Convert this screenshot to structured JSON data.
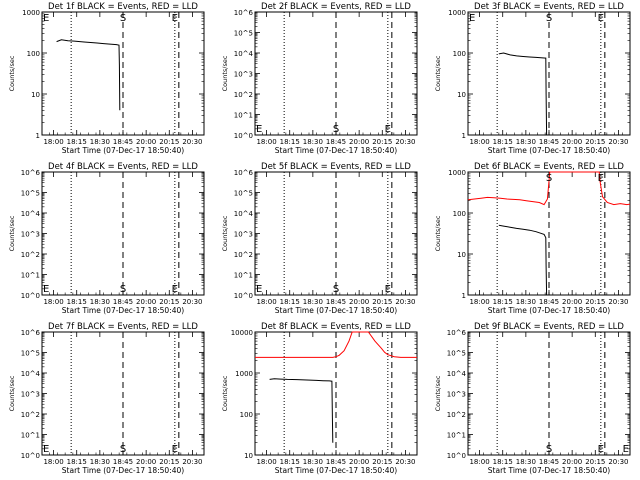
{
  "figure": {
    "title_template": "Det {det} BLACK = Events, RED = LLD",
    "ylabel": "Counts/sec",
    "xlabel": "Start Time (07-Dec-17 18:50:40)",
    "time_ticks": [
      "18:00",
      "18:15",
      "18:30",
      "18:45",
      "20:00",
      "20:15",
      "20:30"
    ],
    "colors": {
      "events": "#000000",
      "lld": "#ff0000",
      "axes": "#000000"
    }
  },
  "chart_data": [
    {
      "type": "line",
      "det": "1f",
      "title": "Det 1f BLACK = Events, RED = LLD",
      "xlabel": "Start Time (07-Dec-17 18:50:40)",
      "ylabel": "Counts/sec",
      "yscale": "log",
      "ylim": [
        1,
        1000
      ],
      "ytick_labels": [
        "1",
        "10",
        "100",
        "1000"
      ],
      "markers": [
        {
          "label": "E",
          "x": 0.0
        },
        {
          "label": "S",
          "x": 0.5
        },
        {
          "label": "E",
          "x": 0.82
        }
      ],
      "dotted_lines": [
        0.18,
        0.82
      ],
      "series": [
        {
          "color": "black",
          "x": [
            0.09,
            0.12,
            0.16,
            0.2,
            0.26,
            0.3,
            0.34,
            0.38,
            0.42,
            0.46,
            0.475,
            0.478,
            0.48
          ],
          "y": [
            190,
            210,
            200,
            195,
            185,
            180,
            175,
            170,
            165,
            160,
            155,
            50,
            4
          ]
        }
      ]
    },
    {
      "type": "line",
      "det": "2f",
      "title": "Det 2f BLACK = Events, RED = LLD",
      "xlabel": "Start Time (07-Dec-17 18:50:40)",
      "ylabel": "Counts/sec",
      "yscale": "log",
      "ylim": [
        1,
        1000000
      ],
      "ytick_labels": [
        "10^0",
        "10^1",
        "10^2",
        "10^3",
        "10^4",
        "10^5",
        "10^6"
      ],
      "markers": [
        {
          "label": "E",
          "x": 0.0
        },
        {
          "label": "S",
          "x": 0.5
        },
        {
          "label": "E",
          "x": 0.82
        }
      ],
      "dotted_lines": [
        0.18,
        0.82
      ],
      "series": []
    },
    {
      "type": "line",
      "det": "3f",
      "title": "Det 3f BLACK = Events, RED = LLD",
      "xlabel": "Start Time (07-Dec-17 18:50:40)",
      "ylabel": "Counts/sec",
      "yscale": "log",
      "ylim": [
        1,
        1000
      ],
      "ytick_labels": [
        "1",
        "10",
        "100",
        "1000"
      ],
      "markers": [
        {
          "label": "E",
          "x": 0.0
        },
        {
          "label": "S",
          "x": 0.5
        },
        {
          "label": "E",
          "x": 0.82
        }
      ],
      "dotted_lines": [
        0.18,
        0.82
      ],
      "series": [
        {
          "color": "black",
          "x": [
            0.19,
            0.22,
            0.26,
            0.3,
            0.34,
            0.38,
            0.42,
            0.46,
            0.48,
            0.482,
            0.485
          ],
          "y": [
            95,
            100,
            90,
            85,
            82,
            80,
            78,
            76,
            75,
            10,
            1
          ]
        }
      ]
    },
    {
      "type": "line",
      "det": "4f",
      "title": "Det 4f BLACK = Events, RED = LLD",
      "xlabel": "Start Time (07-Dec-17 18:50:40)",
      "ylabel": "Counts/sec",
      "yscale": "log",
      "ylim": [
        1,
        1000000
      ],
      "ytick_labels": [
        "10^0",
        "10^1",
        "10^2",
        "10^3",
        "10^4",
        "10^5",
        "10^6"
      ],
      "markers": [
        {
          "label": "E",
          "x": 0.0
        },
        {
          "label": "S",
          "x": 0.5
        },
        {
          "label": "E",
          "x": 0.82
        }
      ],
      "dotted_lines": [
        0.18,
        0.82
      ],
      "series": []
    },
    {
      "type": "line",
      "det": "5f",
      "title": "Det 5f BLACK = Events, RED = LLD",
      "xlabel": "Start Time (07-Dec-17 18:50:40)",
      "ylabel": "Counts/sec",
      "yscale": "log",
      "ylim": [
        1,
        1000000
      ],
      "ytick_labels": [
        "10^0",
        "10^1",
        "10^2",
        "10^3",
        "10^4",
        "10^5",
        "10^6"
      ],
      "markers": [
        {
          "label": "E",
          "x": 0.0
        },
        {
          "label": "S",
          "x": 0.5
        },
        {
          "label": "E",
          "x": 0.82
        }
      ],
      "dotted_lines": [
        0.18,
        0.82
      ],
      "series": []
    },
    {
      "type": "line",
      "det": "6f",
      "title": "Det 6f BLACK = Events, RED = LLD",
      "xlabel": "Start Time (07-Dec-17 18:50:40)",
      "ylabel": "Counts/sec",
      "yscale": "log",
      "ylim": [
        1,
        1000
      ],
      "ytick_labels": [
        "1",
        "10",
        "100",
        "1000"
      ],
      "markers": [
        {
          "label": "S",
          "x": 0.5
        },
        {
          "label": "E",
          "x": 0.82
        }
      ],
      "dotted_lines": [
        0.18,
        0.82
      ],
      "series": [
        {
          "color": "red",
          "x": [
            0.0,
            0.04,
            0.08,
            0.12,
            0.16,
            0.2,
            0.24,
            0.28,
            0.32,
            0.36,
            0.4,
            0.44,
            0.47,
            0.49,
            0.5,
            0.505,
            0.51,
            0.52,
            0.56,
            0.6,
            0.64,
            0.68,
            0.72,
            0.76,
            0.8,
            0.81,
            0.815,
            0.83,
            0.86,
            0.9,
            0.94,
            0.98,
            1.0
          ],
          "y": [
            210,
            220,
            230,
            240,
            235,
            230,
            220,
            215,
            210,
            200,
            190,
            180,
            160,
            220,
            600,
            1000,
            1000,
            1000,
            1000,
            1000,
            1000,
            1000,
            1000,
            1000,
            1000,
            1000,
            600,
            250,
            180,
            160,
            170,
            160,
            165
          ]
        },
        {
          "color": "black",
          "x": [
            0.19,
            0.22,
            0.26,
            0.3,
            0.34,
            0.38,
            0.42,
            0.45,
            0.47,
            0.48,
            0.482,
            0.485
          ],
          "y": [
            50,
            48,
            45,
            42,
            40,
            38,
            35,
            32,
            30,
            25,
            5,
            1
          ]
        }
      ]
    },
    {
      "type": "line",
      "det": "7f",
      "title": "Det 7f BLACK = Events, RED = LLD",
      "xlabel": "Start Time (07-Dec-17 18:50:40)",
      "ylabel": "Counts/sec",
      "yscale": "log",
      "ylim": [
        1,
        1000000
      ],
      "ytick_labels": [
        "10^0",
        "10^1",
        "10^2",
        "10^3",
        "10^4",
        "10^5",
        "10^6"
      ],
      "markers": [
        {
          "label": "E",
          "x": 0.0
        },
        {
          "label": "S",
          "x": 0.5
        },
        {
          "label": "E",
          "x": 0.82
        }
      ],
      "dotted_lines": [
        0.18,
        0.82
      ],
      "series": []
    },
    {
      "type": "line",
      "det": "8f",
      "title": "Det 8f BLACK = Events, RED = LLD",
      "xlabel": "Start Time (07-Dec-17 18:50:40)",
      "ylabel": "Counts/sec",
      "yscale": "log",
      "ylim": [
        10,
        10000
      ],
      "ytick_labels": [
        "10",
        "100",
        "1000",
        "10000"
      ],
      "markers": [],
      "dotted_lines": [
        0.18,
        0.82
      ],
      "series": [
        {
          "color": "red",
          "x": [
            0.0,
            0.1,
            0.2,
            0.3,
            0.4,
            0.45,
            0.48,
            0.5,
            0.52,
            0.55,
            0.58,
            0.6,
            0.63,
            0.66,
            0.7,
            0.74,
            0.78,
            0.8,
            0.82,
            0.86,
            0.9,
            0.95,
            1.0
          ],
          "y": [
            2400,
            2400,
            2400,
            2400,
            2400,
            2400,
            2400,
            2500,
            2700,
            3500,
            6000,
            10000,
            10000,
            10000,
            10000,
            6000,
            4000,
            3200,
            2800,
            2500,
            2400,
            2400,
            2400
          ]
        },
        {
          "color": "black",
          "x": [
            0.09,
            0.12,
            0.16,
            0.2,
            0.26,
            0.3,
            0.34,
            0.38,
            0.42,
            0.46,
            0.475,
            0.478,
            0.48
          ],
          "y": [
            700,
            720,
            710,
            700,
            690,
            680,
            670,
            660,
            650,
            640,
            630,
            80,
            20
          ]
        }
      ]
    },
    {
      "type": "line",
      "det": "9f",
      "title": "Det 9f BLACK = Events, RED = LLD",
      "xlabel": "Start Time (07-Dec-17 18:50:40)",
      "ylabel": "Counts/sec",
      "yscale": "log",
      "ylim": [
        1,
        1000000
      ],
      "ytick_labels": [
        "10^0",
        "10^1",
        "10^2",
        "10^3",
        "10^4",
        "10^5",
        "10^6"
      ],
      "markers": [
        {
          "label": "S",
          "x": 0.5
        },
        {
          "label": "E",
          "x": 0.82
        },
        {
          "label": "E",
          "x": 1.0
        }
      ],
      "dotted_lines": [
        0.18,
        0.82
      ],
      "series": []
    }
  ]
}
